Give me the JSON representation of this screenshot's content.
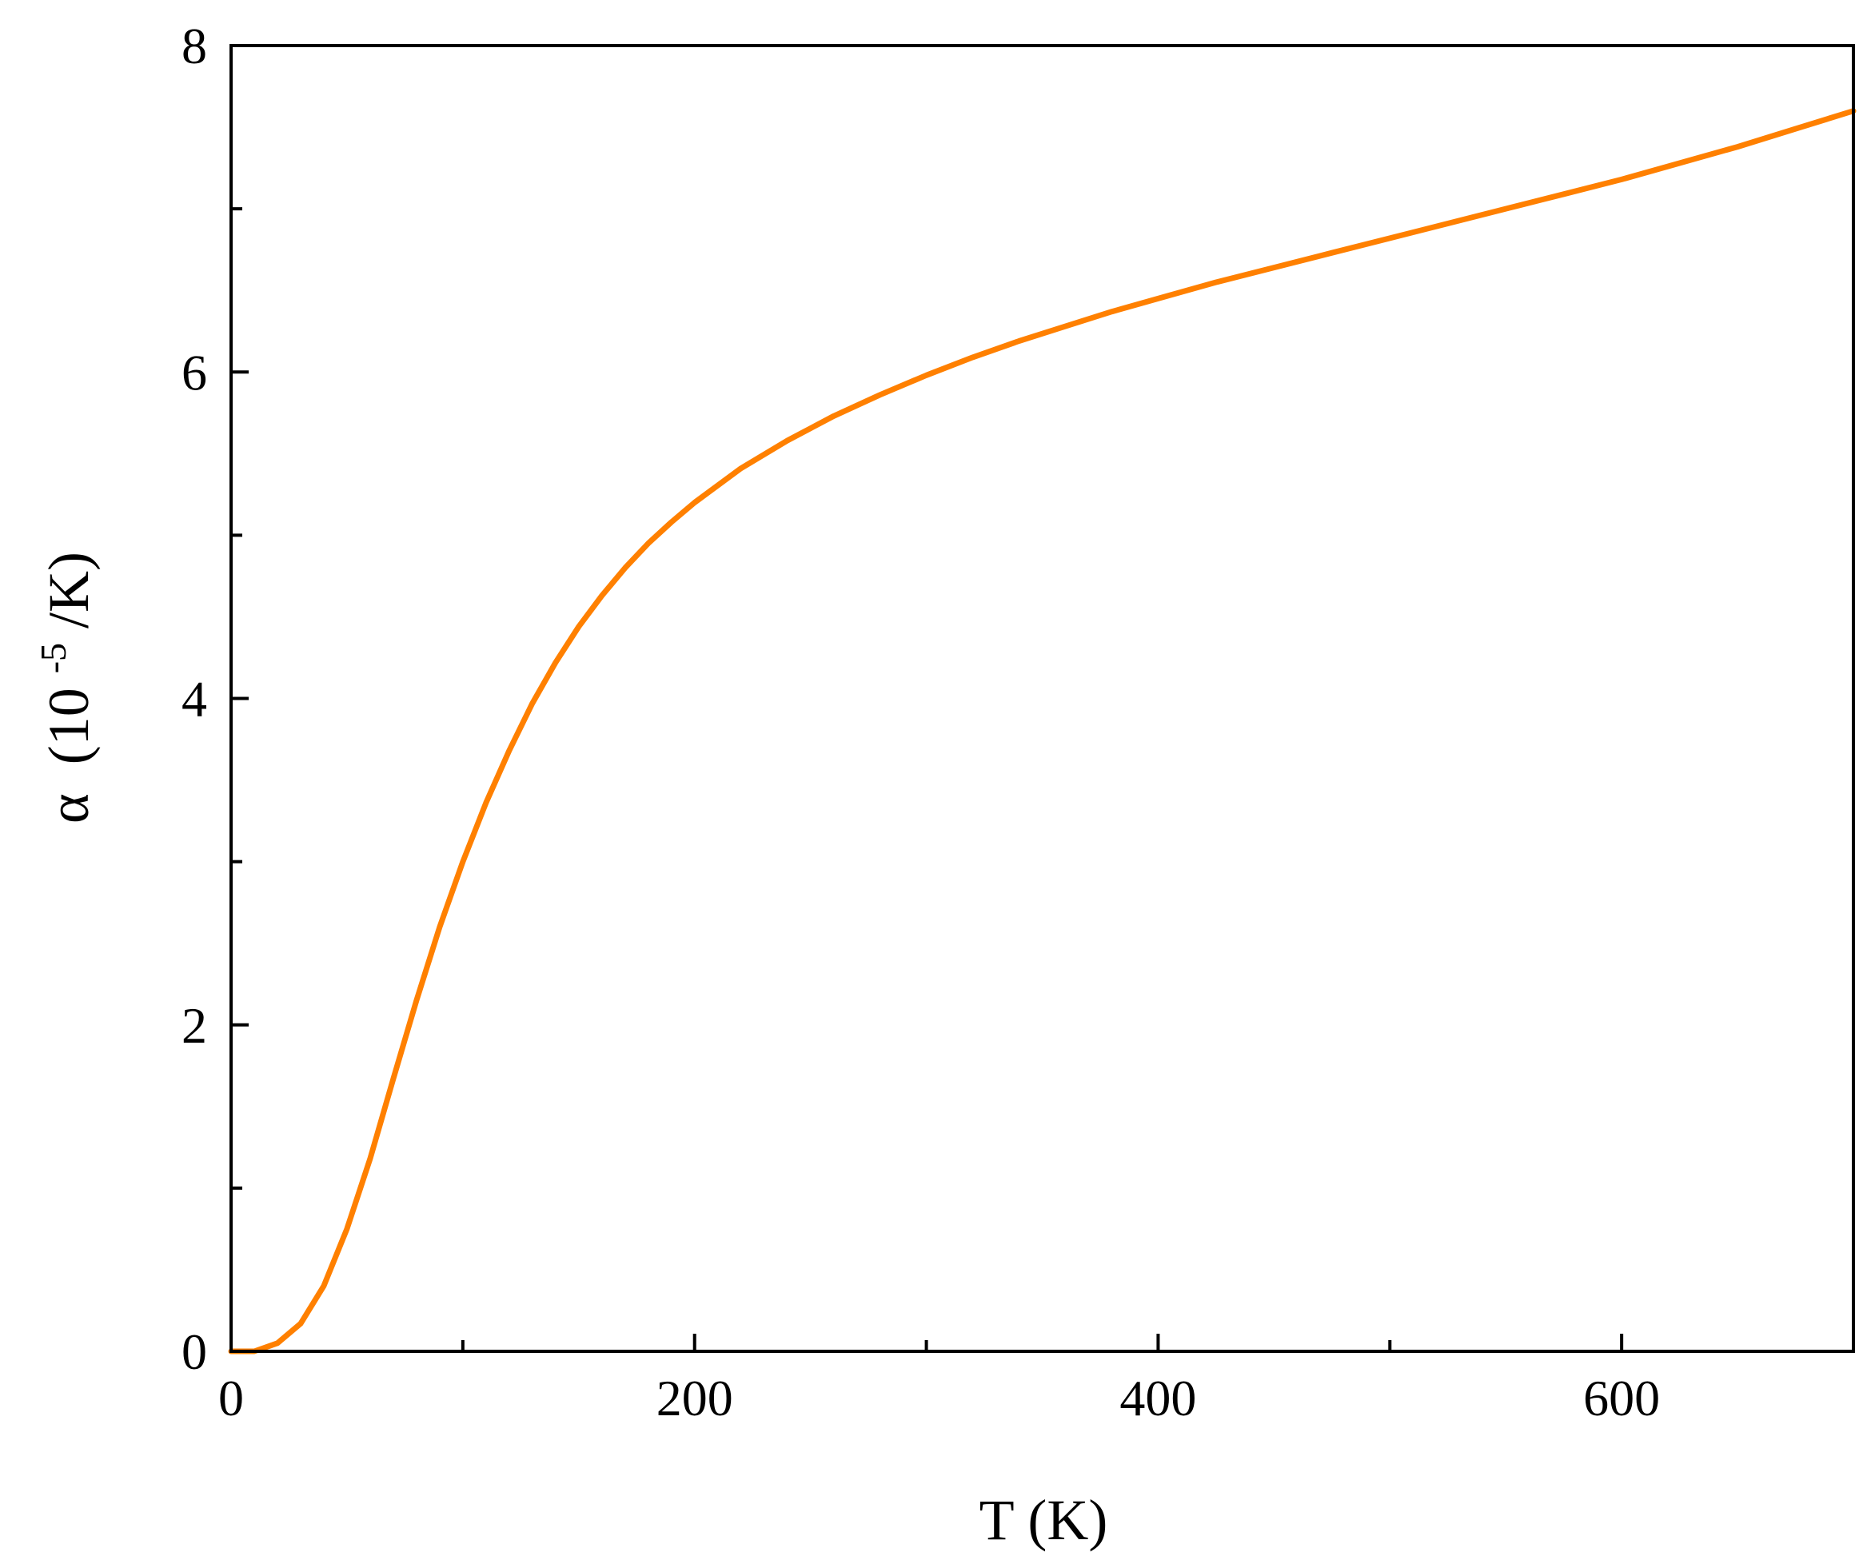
{
  "chart_data": {
    "type": "line",
    "title": "",
    "xlabel": "T (K)",
    "ylabel": {
      "symbol": "α",
      "open": "(10",
      "exponent": "-5",
      "close": "/K)"
    },
    "xlim": [
      0,
      700
    ],
    "ylim": [
      0,
      8
    ],
    "x_major_ticks": [
      0,
      200,
      400,
      600
    ],
    "x_minor_ticks": [
      100,
      300,
      500
    ],
    "y_major_ticks": [
      0,
      2,
      4,
      6,
      8
    ],
    "y_minor_ticks": [
      1,
      3,
      5,
      7
    ],
    "x_tick_labels": [
      "0",
      "200",
      "400",
      "600"
    ],
    "y_tick_labels": [
      "0",
      "2",
      "4",
      "6",
      "8"
    ],
    "grid": false,
    "legend": "none",
    "series": [
      {
        "color": "#ff8000",
        "x": [
          0,
          10,
          20,
          30,
          40,
          50,
          60,
          70,
          80,
          90,
          100,
          110,
          120,
          130,
          140,
          150,
          160,
          170,
          180,
          190,
          200,
          220,
          240,
          260,
          280,
          300,
          320,
          340,
          360,
          380,
          400,
          425,
          450,
          475,
          500,
          525,
          550,
          575,
          600,
          625,
          650,
          675,
          700
        ],
        "y": [
          0.0,
          0.0,
          0.05,
          0.17,
          0.4,
          0.75,
          1.18,
          1.67,
          2.15,
          2.6,
          3.0,
          3.36,
          3.68,
          3.97,
          4.22,
          4.44,
          4.63,
          4.8,
          4.95,
          5.08,
          5.2,
          5.41,
          5.58,
          5.73,
          5.86,
          5.98,
          6.09,
          6.19,
          6.28,
          6.37,
          6.45,
          6.55,
          6.64,
          6.73,
          6.82,
          6.91,
          7.0,
          7.09,
          7.18,
          7.28,
          7.38,
          7.49,
          7.6
        ]
      }
    ]
  }
}
